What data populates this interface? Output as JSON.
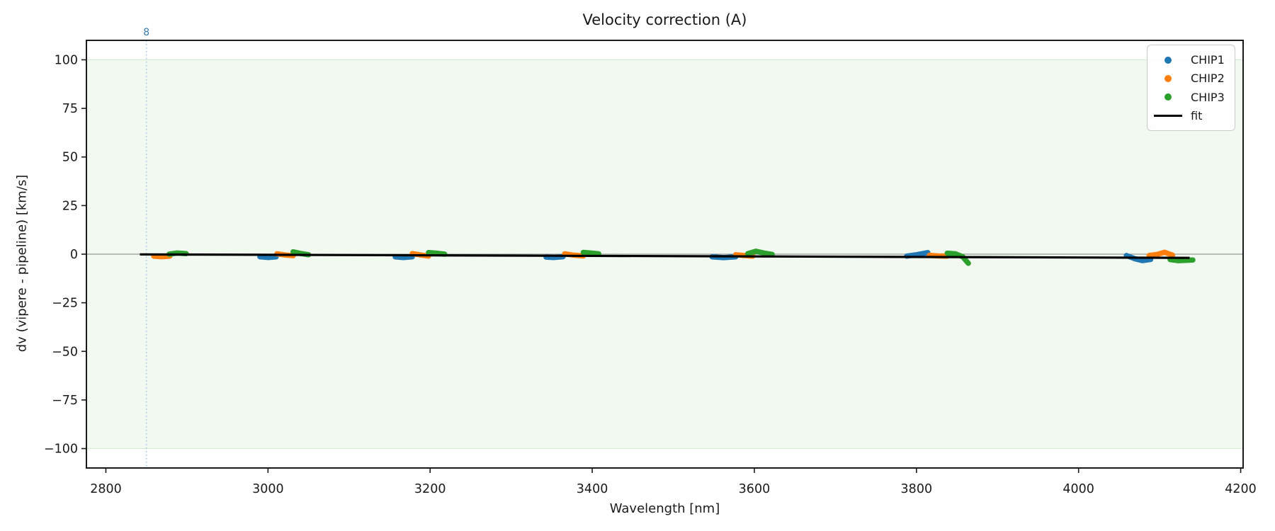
{
  "chart_data": {
    "type": "scatter",
    "title": "Velocity correction (A)",
    "xlabel": "Wavelength [nm]",
    "ylabel": "dv (vipere - pipeline) [km/s]",
    "xlim": [
      2776,
      4203
    ],
    "ylim": [
      -110,
      110
    ],
    "grid": false,
    "legend_position": "upper right",
    "xticks": [
      {
        "v": 2800,
        "label": "2800"
      },
      {
        "v": 3000,
        "label": "3000"
      },
      {
        "v": 3200,
        "label": "3200"
      },
      {
        "v": 3400,
        "label": "3400"
      },
      {
        "v": 3600,
        "label": "3600"
      },
      {
        "v": 3800,
        "label": "3800"
      },
      {
        "v": 4000,
        "label": "4000"
      },
      {
        "v": 4200,
        "label": "4200"
      }
    ],
    "yticks": [
      {
        "v": 100,
        "label": "100"
      },
      {
        "v": 75,
        "label": "75"
      },
      {
        "v": 50,
        "label": "50"
      },
      {
        "v": 25,
        "label": "25"
      },
      {
        "v": 0,
        "label": "0"
      },
      {
        "v": -25,
        "label": "−25"
      },
      {
        "v": -50,
        "label": "−50"
      },
      {
        "v": -75,
        "label": "−75"
      },
      {
        "v": -100,
        "label": "−100"
      }
    ],
    "band": {
      "ymin": -100,
      "ymax": 100,
      "fill": "rgba(44,160,44,0.065)",
      "edge": "rgba(44,160,44,0.18)"
    },
    "zero_line": {
      "y": 0,
      "color": "#7f7f7f"
    },
    "vline": {
      "x": 2850,
      "label": "8",
      "line_color": "#a9cbe4",
      "label_color": "#3b7cb0"
    },
    "series": [
      {
        "name": "CHIP1",
        "color": "#1f77b4",
        "segments": [
          [
            [
              2990,
              -1.3
            ],
            [
              3000,
              -1.7
            ],
            [
              3010,
              -1.4
            ]
          ],
          [
            [
              3157,
              -1.4
            ],
            [
              3167,
              -1.7
            ],
            [
              3178,
              -1.4
            ]
          ],
          [
            [
              3343,
              -1.5
            ],
            [
              3353,
              -1.7
            ],
            [
              3364,
              -1.3
            ]
          ],
          [
            [
              3548,
              -1.4
            ],
            [
              3562,
              -1.8
            ],
            [
              3577,
              -1.4
            ]
          ],
          [
            [
              3788,
              -1.0
            ],
            [
              3800,
              -0.3
            ],
            [
              3814,
              0.8
            ]
          ],
          [
            [
              4059,
              -0.7
            ],
            [
              4069,
              -2.3
            ],
            [
              4079,
              -3.3
            ],
            [
              4089,
              -2.7
            ]
          ]
        ]
      },
      {
        "name": "CHIP2",
        "color": "#ff7f0e",
        "segments": [
          [
            [
              2859,
              -1.0
            ],
            [
              2869,
              -1.3
            ],
            [
              2879,
              -1.0
            ]
          ],
          [
            [
              3011,
              0.2
            ],
            [
              3021,
              -0.4
            ],
            [
              3031,
              -0.8
            ]
          ],
          [
            [
              3178,
              0.3
            ],
            [
              3188,
              -0.4
            ],
            [
              3198,
              -1.0
            ]
          ],
          [
            [
              3366,
              0.2
            ],
            [
              3377,
              -0.5
            ],
            [
              3389,
              -0.9
            ]
          ],
          [
            [
              3577,
              -0.3
            ],
            [
              3587,
              -0.7
            ],
            [
              3598,
              -1.0
            ]
          ],
          [
            [
              3816,
              -0.6
            ],
            [
              3827,
              -0.9
            ],
            [
              3838,
              -1.0
            ]
          ],
          [
            [
              4087,
              -0.7
            ],
            [
              4097,
              -0.1
            ],
            [
              4106,
              1.0
            ],
            [
              4116,
              -0.5
            ]
          ]
        ]
      },
      {
        "name": "CHIP3",
        "color": "#2ca02c",
        "segments": [
          [
            [
              2878,
              0.0
            ],
            [
              2888,
              0.6
            ],
            [
              2899,
              0.3
            ]
          ],
          [
            [
              3031,
              1.2
            ],
            [
              3040,
              0.4
            ],
            [
              3050,
              -0.3
            ]
          ],
          [
            [
              3198,
              0.8
            ],
            [
              3208,
              0.5
            ],
            [
              3218,
              0.0
            ]
          ],
          [
            [
              3389,
              0.9
            ],
            [
              3398,
              0.6
            ],
            [
              3408,
              0.2
            ]
          ],
          [
            [
              3592,
              0.3
            ],
            [
              3602,
              1.5
            ],
            [
              3612,
              0.6
            ],
            [
              3622,
              -0.1
            ]
          ],
          [
            [
              3838,
              0.5
            ],
            [
              3848,
              0.2
            ],
            [
              3857,
              -1.3
            ],
            [
              3864,
              -4.7
            ]
          ],
          [
            [
              4113,
              -2.8
            ],
            [
              4123,
              -3.3
            ],
            [
              4141,
              -3.0
            ]
          ]
        ]
      }
    ],
    "fit": {
      "name": "fit",
      "color": "#000000",
      "points": [
        [
          2842,
          -0.1
        ],
        [
          4137,
          -1.9
        ]
      ]
    },
    "legend": [
      {
        "label": "CHIP1",
        "color": "#1f77b4",
        "marker": "dot"
      },
      {
        "label": "CHIP2",
        "color": "#ff7f0e",
        "marker": "dot"
      },
      {
        "label": "CHIP3",
        "color": "#2ca02c",
        "marker": "dot"
      },
      {
        "label": "fit",
        "color": "#000000",
        "marker": "line"
      }
    ]
  }
}
